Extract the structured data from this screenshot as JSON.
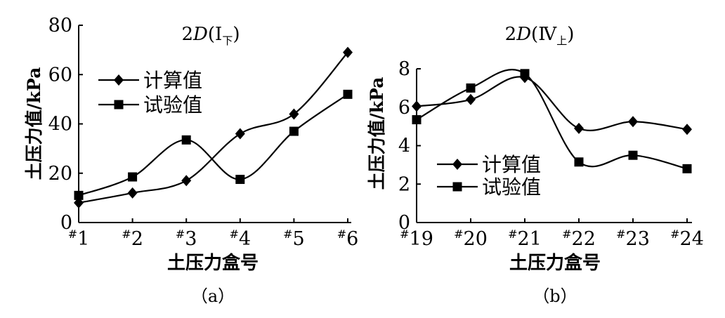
{
  "chart_data": [
    {
      "type": "line",
      "title": "2D(Ⅰ下)",
      "title_main": "2",
      "title_var": "D",
      "title_paren_open": "(",
      "title_roman": "Ⅰ",
      "title_sub": "下",
      "title_paren_close": ")",
      "panel_label": "（a）",
      "xlabel": "土压力盒号",
      "ylabel": "土压力值/kPa",
      "ylim": [
        0,
        80
      ],
      "yticks": [
        0,
        20,
        40,
        60,
        80
      ],
      "categories": [
        "#1",
        "#2",
        "#3",
        "#4",
        "#5",
        "#6"
      ],
      "category_numbers": [
        "1",
        "2",
        "3",
        "4",
        "5",
        "6"
      ],
      "hash": "#",
      "legend_position": "upper-left",
      "series": [
        {
          "name": "计算值",
          "marker": "diamond",
          "values": [
            8,
            12,
            17,
            36,
            44,
            69
          ]
        },
        {
          "name": "试验值",
          "marker": "square",
          "values": [
            11,
            18.5,
            33.5,
            17.5,
            37,
            52
          ]
        }
      ]
    },
    {
      "type": "line",
      "title": "2D(Ⅳ上)",
      "title_main": "2",
      "title_var": "D",
      "title_paren_open": "(",
      "title_roman": "Ⅳ",
      "title_sub": "上",
      "title_paren_close": ")",
      "panel_label": "（b）",
      "xlabel": "土压力盒号",
      "ylabel": "土压力值/kPa",
      "ylim": [
        0,
        8
      ],
      "yticks": [
        0,
        2,
        4,
        6,
        8
      ],
      "categories": [
        "#19",
        "#20",
        "#21",
        "#22",
        "#23",
        "#24"
      ],
      "category_numbers": [
        "19",
        "20",
        "21",
        "22",
        "23",
        "24"
      ],
      "hash": "#",
      "legend_position": "lower-left",
      "series": [
        {
          "name": "计算值",
          "marker": "diamond",
          "values": [
            6.05,
            6.4,
            7.55,
            4.9,
            5.25,
            4.85
          ]
        },
        {
          "name": "试验值",
          "marker": "square",
          "values": [
            5.35,
            7.0,
            7.75,
            3.15,
            3.5,
            2.8
          ]
        }
      ]
    }
  ]
}
